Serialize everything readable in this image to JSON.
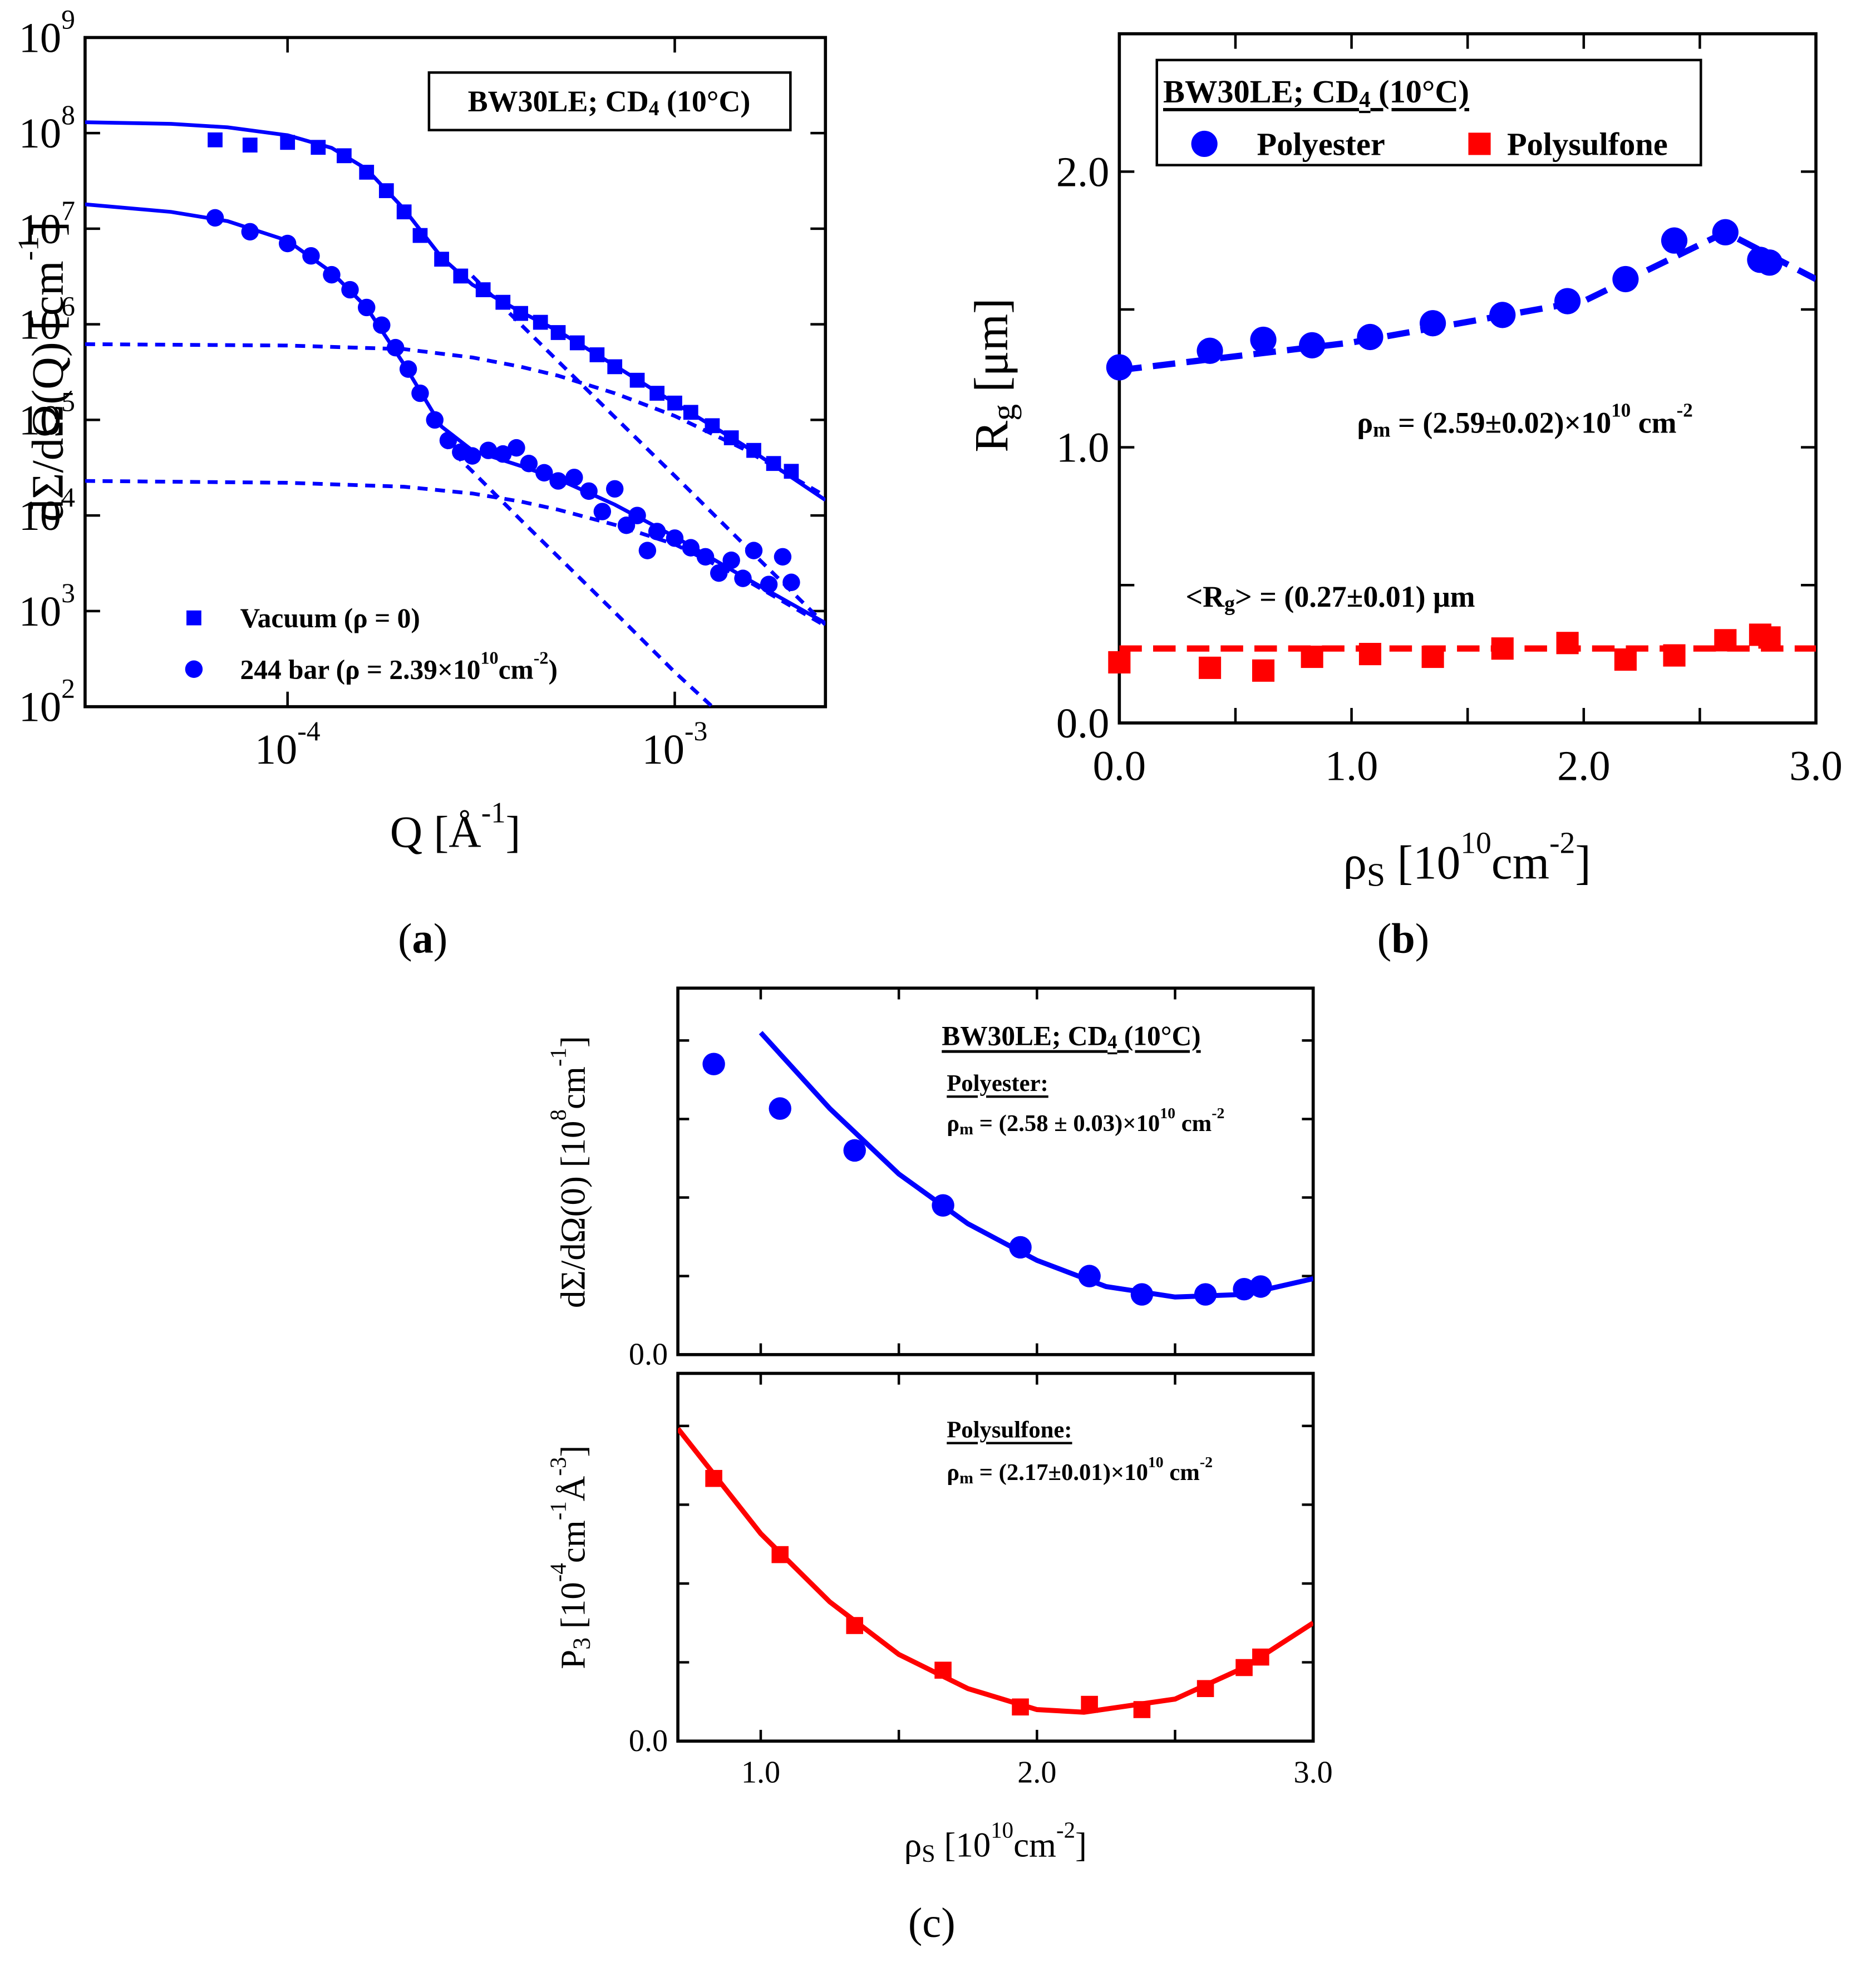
{
  "chart_data": [
    {
      "type": "scatter",
      "label": [
        "(",
        {
          "bold": "a"
        },
        ")"
      ],
      "title": [
        "BW30LE; CD",
        {
          "sub": "4"
        },
        " (10°C)"
      ],
      "xlabel": [
        "Q [Å",
        {
          "sup": "-1"
        },
        "]"
      ],
      "ylabel": [
        "dΣ/dΩ(Q) [cm",
        {
          "sup": "-1"
        },
        "]"
      ],
      "xscale": "log",
      "yscale": "log",
      "xlim": [
        3e-05,
        0.00245
      ],
      "ylim": [
        100,
        1000000000.0
      ],
      "xticks": [
        {
          "value": 0.0001,
          "label": [
            "10",
            {
              "sup": "-4"
            }
          ]
        },
        {
          "value": 0.001,
          "label": [
            "10",
            {
              "sup": "-3"
            }
          ]
        }
      ],
      "yticks": [
        {
          "value": 100,
          "label": [
            "10",
            {
              "sup": "2"
            }
          ]
        },
        {
          "value": 1000,
          "label": [
            "10",
            {
              "sup": "3"
            }
          ]
        },
        {
          "value": 10000,
          "label": [
            "10",
            {
              "sup": "4"
            }
          ]
        },
        {
          "value": 100000,
          "label": [
            "10",
            {
              "sup": "5"
            }
          ]
        },
        {
          "value": 1000000,
          "label": [
            "10",
            {
              "sup": "6"
            }
          ]
        },
        {
          "value": 10000000,
          "label": [
            "10",
            {
              "sup": "7"
            }
          ]
        },
        {
          "value": 100000000,
          "label": [
            "10",
            {
              "sup": "8"
            }
          ]
        },
        {
          "value": 1000000000,
          "label": [
            "10",
            {
              "sup": "9"
            }
          ]
        }
      ],
      "legend": "lower left",
      "series": [
        {
          "name": "Vacuum (ρ = 0)",
          "marker": "square",
          "color": "#0000ff",
          "x": [
            6.5e-05,
            8e-05,
            0.0001,
            0.00012,
            0.00014,
            0.00016,
            0.00018,
            0.0002,
            0.00022,
            0.00025,
            0.00028,
            0.00032,
            0.00036,
            0.0004,
            0.00045,
            0.0005,
            0.00056,
            0.00063,
            0.0007,
            0.0008,
            0.0009,
            0.001,
            0.0011,
            0.00125,
            0.0014,
            0.0016,
            0.0018,
            0.002
          ],
          "values": [
            85000000.0,
            75000000.0,
            80000000.0,
            71000000.0,
            58000000.0,
            39000000.0,
            25000000.0,
            15000000.0,
            8500000.0,
            4800000.0,
            3200000.0,
            2300000.0,
            1700000.0,
            1300000.0,
            1050000.0,
            820000.0,
            640000.0,
            480000.0,
            360000.0,
            260000.0,
            190000.0,
            150000.0,
            120000.0,
            87000.0,
            65000.0,
            48000.0,
            35000.0,
            29000.0
          ]
        },
        {
          "name": [
            "244 bar (ρ = 2.39×10",
            {
              "sup": "10"
            },
            "cm",
            {
              "sup": "-2"
            },
            ")"
          ],
          "marker": "circle",
          "color": "#0000ff",
          "x": [
            6.5e-05,
            8e-05,
            0.0001,
            0.000115,
            0.00013,
            0.000145,
            0.00016,
            0.000175,
            0.00019,
            0.000205,
            0.00022,
            0.00024,
            0.00026,
            0.00028,
            0.0003,
            0.00033,
            0.00036,
            0.00039,
            0.00042,
            0.00046,
            0.0005,
            0.00055,
            0.0006,
            0.00065,
            0.0007,
            0.00075,
            0.0008,
            0.00085,
            0.0009,
            0.001,
            0.0011,
            0.0012,
            0.0013,
            0.0014,
            0.0015,
            0.0016,
            0.00175,
            0.0019,
            0.002
          ],
          "values": [
            13000000.0,
            9300000.0,
            7000000.0,
            5200000.0,
            3300000.0,
            2300000.0,
            1500000.0,
            980000.0,
            570000.0,
            340000.0,
            190000.0,
            100000.0,
            61000.0,
            46000.0,
            42000.0,
            48000.0,
            44000.0,
            51000.0,
            35000.0,
            28000.0,
            23000.0,
            25000.0,
            18000.0,
            11000.0,
            19000.0,
            7900.0,
            10000.0,
            4300.0,
            6800.0,
            5800.0,
            4600.0,
            3700.0,
            2500.0,
            3400.0,
            2200.0,
            4300.0,
            1900.0,
            3700.0,
            2000.0
          ]
        }
      ],
      "fits": [
        {
          "color": "#0000ff",
          "dash": false,
          "x": [
            3e-05,
            5e-05,
            7e-05,
            0.0001,
            0.00013,
            0.00016,
            0.0002,
            0.00025,
            0.0003,
            0.0004,
            0.0005,
            0.0007,
            0.001,
            0.0015,
            0.00245
          ],
          "values": [
            130000000.0,
            125000000.0,
            115000000.0,
            95000000.0,
            70000000.0,
            42000000.0,
            16000000.0,
            5000000.0,
            2600000.0,
            1350000.0,
            850000.0,
            370000.0,
            150000.0,
            55000.0,
            14500.0
          ]
        },
        {
          "color": "#0000ff",
          "dash": false,
          "x": [
            3e-05,
            5e-05,
            7e-05,
            0.0001,
            0.00013,
            0.00016,
            0.0002,
            0.00025,
            0.0003,
            0.0004,
            0.0005,
            0.0007,
            0.001,
            0.0015,
            0.00245
          ],
          "values": [
            18000000.0,
            15000000.0,
            12000000.0,
            7500000.0,
            3500000.0,
            1500000.0,
            380000.0,
            85000.0,
            48000.0,
            33000.0,
            24000.0,
            13000.0,
            6000.0,
            2300.0,
            750.0
          ]
        },
        {
          "color": "#0000ff",
          "dash": true,
          "x": [
            3e-05,
            0.0001,
            0.0002,
            0.0003,
            0.0004,
            0.0005,
            0.0007,
            0.001,
            0.0015,
            0.00245
          ],
          "values": [
            620000.0,
            600000.0,
            550000.0,
            450000.0,
            360000.0,
            290000.0,
            190000.0,
            110000.0,
            50000.0,
            16000.0
          ]
        },
        {
          "color": "#0000ff",
          "dash": true,
          "x": [
            0.0003,
            0.0004,
            0.0005,
            0.0007,
            0.001,
            0.0015,
            0.00245
          ],
          "values": [
            3200000.0,
            1000000.0,
            410000.0,
            107000.0,
            26000.0,
            5100.0,
            720.0
          ]
        },
        {
          "color": "#0000ff",
          "dash": true,
          "x": [
            3e-05,
            0.0001,
            0.0002,
            0.0003,
            0.0004,
            0.0005,
            0.0007,
            0.001,
            0.0015,
            0.00245
          ],
          "values": [
            23000.0,
            22000.0,
            20000.0,
            17000.0,
            14000.0,
            11500.0,
            8000.0,
            5000.0,
            2200.0,
            700.0
          ]
        },
        {
          "color": "#0000ff",
          "dash": true,
          "x": [
            0.00025,
            0.0003,
            0.0004,
            0.0005,
            0.0007,
            0.001,
            0.00125
          ],
          "values": [
            60000.0,
            29000.0,
            9000.0,
            3700.0,
            970.0,
            230.0,
            100.0
          ]
        }
      ]
    },
    {
      "type": "scatter",
      "label": [
        "(",
        {
          "bold": "b"
        },
        ")"
      ],
      "title": [
        "BW30LE; CD",
        {
          "sub": "4"
        },
        " (10°C)"
      ],
      "xlabel": [
        "ρ",
        {
          "sub": "S"
        },
        " [10",
        {
          "sup": "10"
        },
        "cm",
        {
          "sup": "-2"
        },
        "]"
      ],
      "ylabel": [
        "R",
        {
          "sub": "g"
        },
        " [μm]"
      ],
      "xlim": [
        0,
        3
      ],
      "ylim": [
        0,
        2.5
      ],
      "xticks": [
        {
          "value": 0,
          "label": "0.0"
        },
        0.5,
        {
          "value": 1,
          "label": "1.0"
        },
        1.5,
        {
          "value": 2,
          "label": "2.0"
        },
        2.5,
        {
          "value": 3,
          "label": "3.0"
        }
      ],
      "yticks": [
        {
          "value": 0,
          "label": "0.0"
        },
        0.5,
        {
          "value": 1,
          "label": "1.0"
        },
        1.5,
        {
          "value": 2,
          "label": "2.0"
        },
        2.5
      ],
      "legend": "upper left",
      "series": [
        {
          "name": "Polyester",
          "marker": "circle",
          "color": "#0000ff",
          "x": [
            0,
            0.39,
            0.62,
            0.83,
            1.08,
            1.35,
            1.65,
            1.93,
            2.18,
            2.39,
            2.61,
            2.76,
            2.8
          ],
          "values": [
            1.29,
            1.35,
            1.39,
            1.37,
            1.4,
            1.45,
            1.48,
            1.53,
            1.61,
            1.75,
            1.78,
            1.68,
            1.67
          ]
        },
        {
          "name": "Polysulfone",
          "marker": "square",
          "color": "#ff0000",
          "x": [
            0,
            0.39,
            0.62,
            0.83,
            1.08,
            1.35,
            1.65,
            1.93,
            2.18,
            2.39,
            2.61,
            2.76,
            2.8
          ],
          "values": [
            0.22,
            0.2,
            0.19,
            0.24,
            0.25,
            0.24,
            0.27,
            0.29,
            0.23,
            0.245,
            0.3,
            0.32,
            0.31
          ]
        }
      ],
      "fits": [
        {
          "color": "#0000ff",
          "dash": true,
          "x": [
            0,
            1,
            2,
            2.61,
            3
          ],
          "values": [
            1.28,
            1.38,
            1.53,
            1.78,
            1.61
          ]
        },
        {
          "color": "#ff0000",
          "dash": true,
          "x": [
            0,
            3
          ],
          "values": [
            0.27,
            0.27
          ]
        }
      ],
      "annotations": [
        {
          "text": [
            "ρ",
            {
              "sub": "m"
            },
            " = (2.59±0.02)×10",
            {
              "sup": "10"
            },
            " cm",
            {
              "sup": "-2"
            }
          ]
        },
        {
          "text": [
            "<R",
            {
              "sub": "g"
            },
            "> = (0.27±0.01) μm"
          ]
        }
      ]
    },
    {
      "type": "scatter",
      "title": [
        "BW30LE; CD",
        {
          "sub": "4"
        },
        " (10°C)"
      ],
      "ylabel": [
        "dΣ/dΩ(0) [10",
        {
          "sup": "8"
        },
        "cm",
        {
          "sup": "-1"
        },
        "]"
      ],
      "xlim": [
        0.7,
        3
      ],
      "ylim": [
        0,
        1.4
      ],
      "yticks": [
        {
          "value": 0,
          "label": "0.0"
        },
        0.3,
        0.6,
        0.9,
        1.2
      ],
      "series": [
        {
          "marker": "circle",
          "color": "#0000ff",
          "x": [
            0.83,
            1.07,
            1.34,
            1.66,
            1.94,
            2.19,
            2.38,
            2.61,
            2.75,
            2.81
          ],
          "values": [
            1.11,
            0.94,
            0.78,
            0.57,
            0.41,
            0.3,
            0.23,
            0.23,
            0.25,
            0.26
          ]
        }
      ],
      "fits": [
        {
          "color": "#0000ff",
          "dash": false,
          "x": [
            1,
            1.25,
            1.5,
            1.75,
            2,
            2.25,
            2.5,
            2.75,
            3
          ],
          "values": [
            1.23,
            0.94,
            0.69,
            0.5,
            0.36,
            0.26,
            0.22,
            0.23,
            0.29
          ]
        }
      ],
      "annotations": [
        {
          "text": "Polyester:",
          "underline": true
        },
        {
          "text": [
            "ρ",
            {
              "sub": "m"
            },
            " = (2.58 ± 0.03)×10",
            {
              "sup": "10"
            },
            " cm",
            {
              "sup": "-2"
            }
          ]
        }
      ]
    },
    {
      "type": "scatter",
      "label": "(c)",
      "xlabel": [
        "ρ",
        {
          "sub": "S"
        },
        " [10",
        {
          "sup": "10"
        },
        "cm",
        {
          "sup": "-2"
        },
        "]"
      ],
      "ylabel": [
        "P",
        {
          "sub": "3"
        },
        " [10",
        {
          "sup": "-4"
        },
        "cm",
        {
          "sup": "-1"
        },
        "Å",
        {
          "sup": "-3"
        },
        "]"
      ],
      "xlim": [
        0.7,
        3
      ],
      "ylim": [
        0,
        1.4
      ],
      "xticks": [
        {
          "value": 1,
          "label": "1.0"
        },
        1.5,
        {
          "value": 2,
          "label": "2.0"
        },
        2.5,
        {
          "value": 3,
          "label": "3.0"
        }
      ],
      "yticks": [
        {
          "value": 0,
          "label": "0.0"
        },
        0.3,
        0.6,
        0.9,
        1.2
      ],
      "series": [
        {
          "marker": "square",
          "color": "#ff0000",
          "x": [
            0.83,
            1.07,
            1.34,
            1.66,
            1.94,
            2.19,
            2.38,
            2.61,
            2.75,
            2.81
          ],
          "values": [
            1,
            0.71,
            0.44,
            0.27,
            0.13,
            0.14,
            0.12,
            0.2,
            0.28,
            0.32
          ]
        }
      ],
      "fits": [
        {
          "color": "#ff0000",
          "dash": false,
          "x": [
            0.7,
            1,
            1.25,
            1.5,
            1.75,
            2,
            2.17,
            2.5,
            2.75,
            3
          ],
          "values": [
            1.19,
            0.79,
            0.53,
            0.33,
            0.2,
            0.12,
            0.11,
            0.16,
            0.28,
            0.45
          ]
        }
      ],
      "annotations": [
        {
          "text": "Polysulfone:",
          "underline": true
        },
        {
          "text": [
            "ρ",
            {
              "sub": "m"
            },
            " = (2.17±0.01)×10",
            {
              "sup": "10"
            },
            " cm",
            {
              "sup": "-2"
            }
          ]
        }
      ]
    }
  ]
}
